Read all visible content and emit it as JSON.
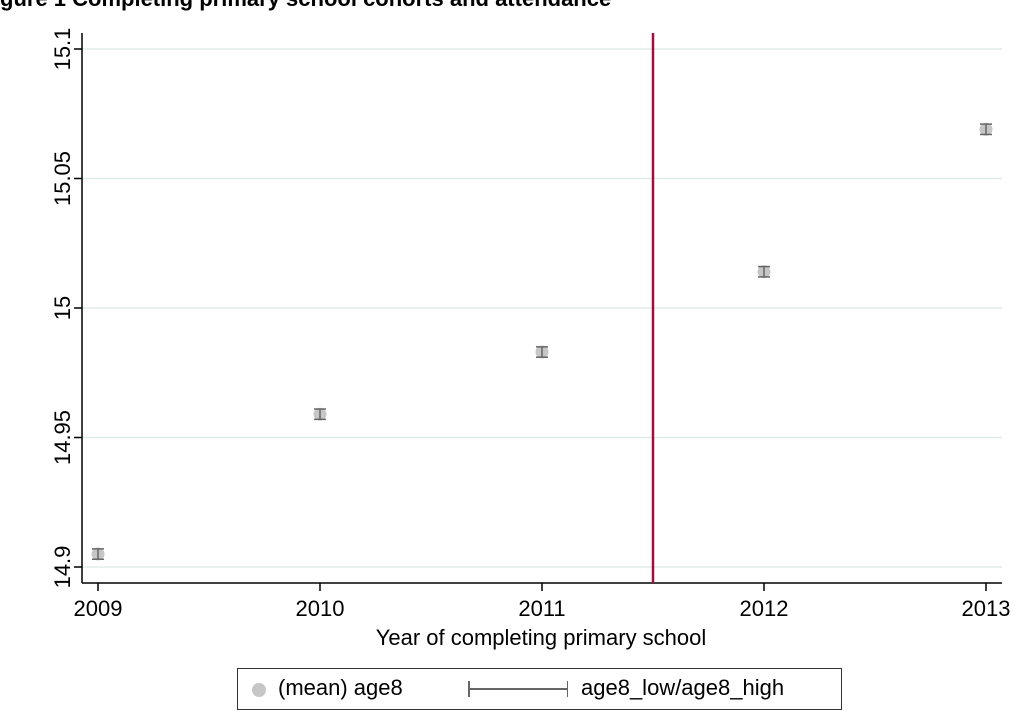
{
  "title": "gure 1 Completing primary school cohorts and attendance",
  "chart_data": {
    "type": "scatter",
    "xlabel": "Year of completing primary school",
    "ylabel": "",
    "xlim": [
      2009,
      2013
    ],
    "ylim": [
      14.9,
      15.1
    ],
    "x_ticks": [
      "2009",
      "2010",
      "2011",
      "2012",
      "2013"
    ],
    "y_ticks": [
      "14.9",
      "14.95",
      "15",
      "15.05",
      "15.1"
    ],
    "grid": true,
    "vline": {
      "x": 2011.5,
      "color": "#a50d3c"
    },
    "series": [
      {
        "name": "(mean) age8",
        "color": "#c6c6c6",
        "x": [
          2009,
          2010,
          2011,
          2012,
          2013
        ],
        "y": [
          14.905,
          14.959,
          14.983,
          15.014,
          15.069
        ]
      },
      {
        "name": "age8_low/age8_high",
        "type": "errorbar",
        "color": "#666666",
        "x": [
          2009,
          2010,
          2011,
          2012,
          2013
        ],
        "low": [
          14.903,
          14.957,
          14.981,
          15.012,
          15.067
        ],
        "high": [
          14.907,
          14.961,
          14.985,
          15.016,
          15.071
        ]
      }
    ],
    "legend": {
      "position": "bottom",
      "items": [
        "(mean) age8",
        "age8_low/age8_high"
      ]
    }
  }
}
